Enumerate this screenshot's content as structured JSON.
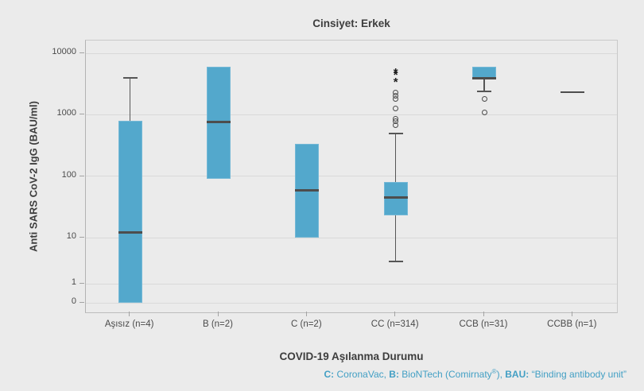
{
  "chart_data": {
    "type": "boxplot",
    "title": "Cinsiyet: Erkek",
    "xlabel": "COVID-19 Aşılanma Durumu",
    "ylabel": "Anti SARS CoV-2 IgG (BAU/ml)",
    "yscale": "log-like (decades 10–10000, compressed segment for 1 and 0)",
    "yticks": [
      10000,
      1000,
      100,
      10,
      1,
      0
    ],
    "grid": true,
    "legend": null,
    "categories": [
      "Aşısız (n=4)",
      "B (n=2)",
      "C (n=2)",
      "CC (n=314)",
      "CCB (n=31)",
      "CCBB (n=1)"
    ],
    "series": [
      {
        "category": "Aşısız (n=4)",
        "q1": 0,
        "median": 12,
        "q3": 800,
        "whisker_low": null,
        "whisker_high": 4000,
        "outliers": [],
        "extremes": []
      },
      {
        "category": "B (n=2)",
        "q1": 90,
        "median": 760,
        "q3": 6000,
        "whisker_low": null,
        "whisker_high": null,
        "outliers": [],
        "extremes": []
      },
      {
        "category": "C (n=2)",
        "q1": 10,
        "median": 58,
        "q3": 340,
        "whisker_low": null,
        "whisker_high": null,
        "outliers": [],
        "extremes": []
      },
      {
        "category": "CC (n=314)",
        "q1": 23,
        "median": 45,
        "q3": 80,
        "whisker_low": 3,
        "whisker_high": 500,
        "outliers": [
          680,
          790,
          860,
          1270,
          1820,
          2050,
          2300
        ],
        "extremes": [
          3700,
          4900,
          5300
        ]
      },
      {
        "category": "CCB (n=31)",
        "q1": 3800,
        "median": 3900,
        "q3": 6000,
        "whisker_low": 2400,
        "whisker_high": null,
        "outliers": [
          1100,
          1800
        ],
        "extremes": []
      },
      {
        "category": "CCBB (n=1)",
        "q1": null,
        "median": 2300,
        "q3": null,
        "whisker_low": null,
        "whisker_high": null,
        "outliers": [],
        "extremes": []
      }
    ],
    "footnote": {
      "segments": [
        {
          "text": "C:",
          "bold": true
        },
        {
          "text": " CoronaVac, ",
          "bold": false
        },
        {
          "text": "B:",
          "bold": true
        },
        {
          "text": " BioNTech (Comirnaty",
          "bold": false
        },
        {
          "text": "®",
          "bold": false,
          "sup": true
        },
        {
          "text": "), ",
          "bold": false
        },
        {
          "text": "BAU:",
          "bold": true
        },
        {
          "text": " “Binding antibody unit”",
          "bold": false
        }
      ]
    },
    "colors": {
      "background": "#ebebeb",
      "box_fill": "#53a8cc",
      "box_edge": "#74b8d6",
      "median": "#4d4d4d",
      "whisker": "#565656",
      "outlier": "#4b4b4b",
      "extreme": "#1f1f1f",
      "grid": "#d9d9d9",
      "plot_border": "#c9c9c9",
      "tick": "#a3a3a3",
      "title_text": "#3d3d3d",
      "tick_text": "#4a4a4a",
      "footnote_text": "#429fc4"
    }
  }
}
